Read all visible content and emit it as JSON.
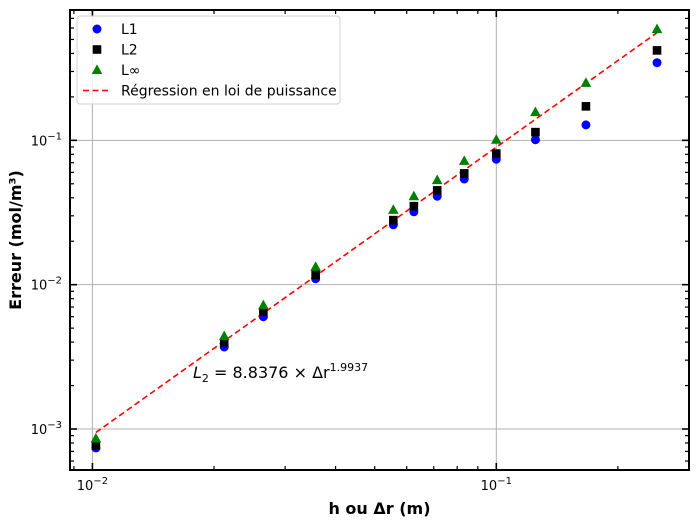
{
  "chart_data": {
    "type": "scatter",
    "title": "",
    "xlabel": "h ou Δr (m)",
    "ylabel": "Erreur (mol/m³)",
    "xscale": "log",
    "yscale": "log",
    "xlim": [
      0.0088,
      0.3
    ],
    "ylim": [
      0.00052,
      0.8
    ],
    "grid": "major",
    "legend_position": "top-left",
    "x": [
      0.0102,
      0.0212,
      0.0265,
      0.0357,
      0.0556,
      0.0625,
      0.0714,
      0.0833,
      0.1,
      0.125,
      0.1667,
      0.25
    ],
    "series": [
      {
        "name": "L1",
        "marker": "circle",
        "color": "#0000ff",
        "values": [
          0.00074,
          0.0037,
          0.006,
          0.011,
          0.026,
          0.032,
          0.041,
          0.054,
          0.074,
          0.101,
          0.128,
          0.345
        ]
      },
      {
        "name": "L2",
        "marker": "square",
        "color": "#000000",
        "values": [
          0.00077,
          0.004,
          0.0065,
          0.0117,
          0.028,
          0.035,
          0.045,
          0.059,
          0.081,
          0.114,
          0.172,
          0.42
        ]
      },
      {
        "name": "L∞",
        "marker": "triangle",
        "color": "#008000",
        "values": [
          0.00086,
          0.0044,
          0.0072,
          0.0133,
          0.033,
          0.041,
          0.053,
          0.072,
          0.101,
          0.157,
          0.25,
          0.59
        ]
      }
    ],
    "regression": {
      "name": "Régression en loi de puissance",
      "color": "#ff0000",
      "style": "dashed",
      "coefficient": 8.8376,
      "exponent": 1.9937,
      "x_range": [
        0.0102,
        0.25
      ]
    },
    "annotation": {
      "lhs": "L",
      "lhs_sub": "2",
      "rhs": " = 8.8376 × Δr",
      "exponent": "1.9937"
    },
    "x_ticks": [
      {
        "value": 0.01,
        "base": "10",
        "exp": "−2"
      },
      {
        "value": 0.1,
        "base": "10",
        "exp": "−1"
      }
    ],
    "y_ticks": [
      {
        "value": 0.001,
        "base": "10",
        "exp": "−3"
      },
      {
        "value": 0.01,
        "base": "10",
        "exp": "−2"
      },
      {
        "value": 0.1,
        "base": "10",
        "exp": "−1"
      }
    ]
  }
}
